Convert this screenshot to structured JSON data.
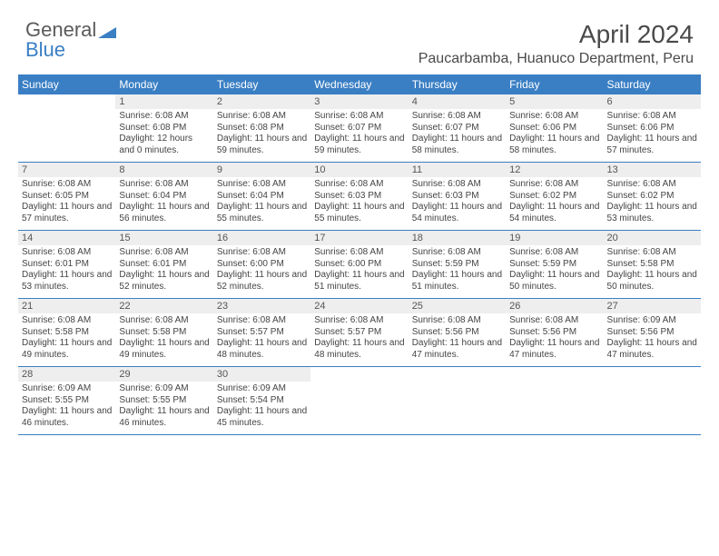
{
  "logo": {
    "text1": "General",
    "text2": "Blue",
    "icon_color": "#3a7fc4"
  },
  "title": "April 2024",
  "location": "Paucarbamba, Huanuco Department, Peru",
  "colors": {
    "header_bg": "#3a7fc4",
    "header_text": "#ffffff",
    "daynum_bg": "#eeeeee",
    "body_text": "#444444",
    "title_text": "#4a4a4a"
  },
  "day_headers": [
    "Sunday",
    "Monday",
    "Tuesday",
    "Wednesday",
    "Thursday",
    "Friday",
    "Saturday"
  ],
  "weeks": [
    [
      {
        "n": "",
        "sunrise": "",
        "sunset": "",
        "daylight": ""
      },
      {
        "n": "1",
        "sunrise": "Sunrise: 6:08 AM",
        "sunset": "Sunset: 6:08 PM",
        "daylight": "Daylight: 12 hours and 0 minutes."
      },
      {
        "n": "2",
        "sunrise": "Sunrise: 6:08 AM",
        "sunset": "Sunset: 6:08 PM",
        "daylight": "Daylight: 11 hours and 59 minutes."
      },
      {
        "n": "3",
        "sunrise": "Sunrise: 6:08 AM",
        "sunset": "Sunset: 6:07 PM",
        "daylight": "Daylight: 11 hours and 59 minutes."
      },
      {
        "n": "4",
        "sunrise": "Sunrise: 6:08 AM",
        "sunset": "Sunset: 6:07 PM",
        "daylight": "Daylight: 11 hours and 58 minutes."
      },
      {
        "n": "5",
        "sunrise": "Sunrise: 6:08 AM",
        "sunset": "Sunset: 6:06 PM",
        "daylight": "Daylight: 11 hours and 58 minutes."
      },
      {
        "n": "6",
        "sunrise": "Sunrise: 6:08 AM",
        "sunset": "Sunset: 6:06 PM",
        "daylight": "Daylight: 11 hours and 57 minutes."
      }
    ],
    [
      {
        "n": "7",
        "sunrise": "Sunrise: 6:08 AM",
        "sunset": "Sunset: 6:05 PM",
        "daylight": "Daylight: 11 hours and 57 minutes."
      },
      {
        "n": "8",
        "sunrise": "Sunrise: 6:08 AM",
        "sunset": "Sunset: 6:04 PM",
        "daylight": "Daylight: 11 hours and 56 minutes."
      },
      {
        "n": "9",
        "sunrise": "Sunrise: 6:08 AM",
        "sunset": "Sunset: 6:04 PM",
        "daylight": "Daylight: 11 hours and 55 minutes."
      },
      {
        "n": "10",
        "sunrise": "Sunrise: 6:08 AM",
        "sunset": "Sunset: 6:03 PM",
        "daylight": "Daylight: 11 hours and 55 minutes."
      },
      {
        "n": "11",
        "sunrise": "Sunrise: 6:08 AM",
        "sunset": "Sunset: 6:03 PM",
        "daylight": "Daylight: 11 hours and 54 minutes."
      },
      {
        "n": "12",
        "sunrise": "Sunrise: 6:08 AM",
        "sunset": "Sunset: 6:02 PM",
        "daylight": "Daylight: 11 hours and 54 minutes."
      },
      {
        "n": "13",
        "sunrise": "Sunrise: 6:08 AM",
        "sunset": "Sunset: 6:02 PM",
        "daylight": "Daylight: 11 hours and 53 minutes."
      }
    ],
    [
      {
        "n": "14",
        "sunrise": "Sunrise: 6:08 AM",
        "sunset": "Sunset: 6:01 PM",
        "daylight": "Daylight: 11 hours and 53 minutes."
      },
      {
        "n": "15",
        "sunrise": "Sunrise: 6:08 AM",
        "sunset": "Sunset: 6:01 PM",
        "daylight": "Daylight: 11 hours and 52 minutes."
      },
      {
        "n": "16",
        "sunrise": "Sunrise: 6:08 AM",
        "sunset": "Sunset: 6:00 PM",
        "daylight": "Daylight: 11 hours and 52 minutes."
      },
      {
        "n": "17",
        "sunrise": "Sunrise: 6:08 AM",
        "sunset": "Sunset: 6:00 PM",
        "daylight": "Daylight: 11 hours and 51 minutes."
      },
      {
        "n": "18",
        "sunrise": "Sunrise: 6:08 AM",
        "sunset": "Sunset: 5:59 PM",
        "daylight": "Daylight: 11 hours and 51 minutes."
      },
      {
        "n": "19",
        "sunrise": "Sunrise: 6:08 AM",
        "sunset": "Sunset: 5:59 PM",
        "daylight": "Daylight: 11 hours and 50 minutes."
      },
      {
        "n": "20",
        "sunrise": "Sunrise: 6:08 AM",
        "sunset": "Sunset: 5:58 PM",
        "daylight": "Daylight: 11 hours and 50 minutes."
      }
    ],
    [
      {
        "n": "21",
        "sunrise": "Sunrise: 6:08 AM",
        "sunset": "Sunset: 5:58 PM",
        "daylight": "Daylight: 11 hours and 49 minutes."
      },
      {
        "n": "22",
        "sunrise": "Sunrise: 6:08 AM",
        "sunset": "Sunset: 5:58 PM",
        "daylight": "Daylight: 11 hours and 49 minutes."
      },
      {
        "n": "23",
        "sunrise": "Sunrise: 6:08 AM",
        "sunset": "Sunset: 5:57 PM",
        "daylight": "Daylight: 11 hours and 48 minutes."
      },
      {
        "n": "24",
        "sunrise": "Sunrise: 6:08 AM",
        "sunset": "Sunset: 5:57 PM",
        "daylight": "Daylight: 11 hours and 48 minutes."
      },
      {
        "n": "25",
        "sunrise": "Sunrise: 6:08 AM",
        "sunset": "Sunset: 5:56 PM",
        "daylight": "Daylight: 11 hours and 47 minutes."
      },
      {
        "n": "26",
        "sunrise": "Sunrise: 6:08 AM",
        "sunset": "Sunset: 5:56 PM",
        "daylight": "Daylight: 11 hours and 47 minutes."
      },
      {
        "n": "27",
        "sunrise": "Sunrise: 6:09 AM",
        "sunset": "Sunset: 5:56 PM",
        "daylight": "Daylight: 11 hours and 47 minutes."
      }
    ],
    [
      {
        "n": "28",
        "sunrise": "Sunrise: 6:09 AM",
        "sunset": "Sunset: 5:55 PM",
        "daylight": "Daylight: 11 hours and 46 minutes."
      },
      {
        "n": "29",
        "sunrise": "Sunrise: 6:09 AM",
        "sunset": "Sunset: 5:55 PM",
        "daylight": "Daylight: 11 hours and 46 minutes."
      },
      {
        "n": "30",
        "sunrise": "Sunrise: 6:09 AM",
        "sunset": "Sunset: 5:54 PM",
        "daylight": "Daylight: 11 hours and 45 minutes."
      },
      {
        "n": "",
        "sunrise": "",
        "sunset": "",
        "daylight": ""
      },
      {
        "n": "",
        "sunrise": "",
        "sunset": "",
        "daylight": ""
      },
      {
        "n": "",
        "sunrise": "",
        "sunset": "",
        "daylight": ""
      },
      {
        "n": "",
        "sunrise": "",
        "sunset": "",
        "daylight": ""
      }
    ]
  ]
}
